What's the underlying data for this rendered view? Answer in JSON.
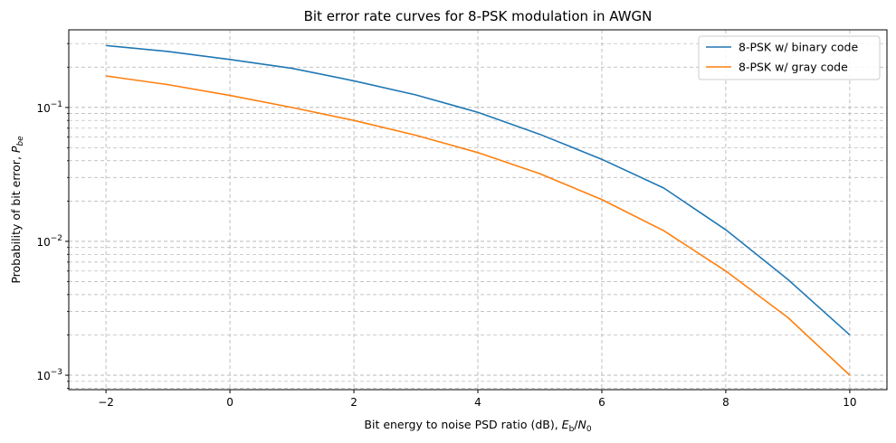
{
  "chart_data": {
    "type": "line",
    "title": "Bit error rate curves for 8-PSK modulation in AWGN",
    "xlabel": "Bit energy to noise PSD ratio (dB), ",
    "xlabel_math": {
      "base": "E",
      "sub": "b",
      "sep": "/",
      "base2": "N",
      "sub2": "0"
    },
    "ylabel": "Probability of bit error, ",
    "ylabel_math": {
      "base": "P",
      "sub": "be"
    },
    "xlim": [
      -2.6,
      10.6
    ],
    "ylim": [
      0.00078,
      0.38
    ],
    "yscale": "log",
    "grid": true,
    "legend_position": "top-right",
    "x_ticks": [
      -2,
      0,
      2,
      4,
      6,
      8,
      10
    ],
    "x_tick_labels": [
      "−2",
      "0",
      "2",
      "4",
      "6",
      "8",
      "10"
    ],
    "y_major_ticks": [
      0.001,
      0.01,
      0.1
    ],
    "y_major_tick_labels": [
      {
        "base": "10",
        "exp": "−3"
      },
      {
        "base": "10",
        "exp": "−2"
      },
      {
        "base": "10",
        "exp": "−1"
      }
    ],
    "series": [
      {
        "name": "8-PSK w/ binary code",
        "color": "#1f77b4",
        "x": [
          -2,
          -1,
          0,
          1,
          2,
          3,
          4,
          5,
          6,
          7,
          8,
          9,
          10
        ],
        "y": [
          0.29,
          0.262,
          0.228,
          0.196,
          0.158,
          0.124,
          0.092,
          0.063,
          0.041,
          0.025,
          0.0122,
          0.0052,
          0.002
        ]
      },
      {
        "name": "8-PSK w/ gray code",
        "color": "#ff7f0e",
        "x": [
          -2,
          -1,
          0,
          1,
          2,
          3,
          4,
          5,
          6,
          7,
          8,
          9,
          10
        ],
        "y": [
          0.172,
          0.148,
          0.123,
          0.1,
          0.08,
          0.062,
          0.046,
          0.032,
          0.0205,
          0.012,
          0.006,
          0.0027,
          0.001
        ]
      }
    ]
  }
}
